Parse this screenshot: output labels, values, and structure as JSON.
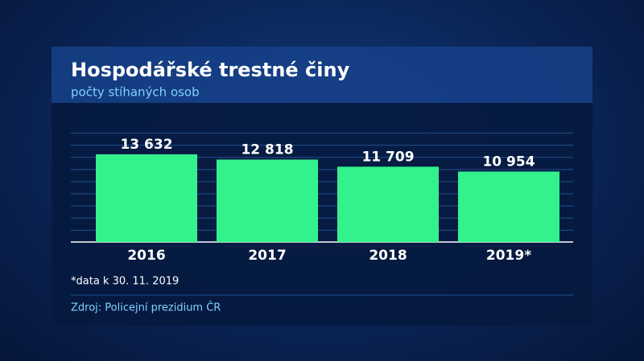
{
  "chart_data": {
    "type": "bar",
    "title": "Hospodářské trestné činy",
    "subtitle": "počty stíhaných osob",
    "categories": [
      "2016",
      "2017",
      "2018",
      "2019*"
    ],
    "values": [
      13632,
      12818,
      11709,
      10954
    ],
    "value_labels": [
      "13 632",
      "12 818",
      "11 709",
      "10 954"
    ],
    "color": "#33f28c",
    "ylim": [
      0,
      17000
    ],
    "footnote": "*data k 30. 11. 2019",
    "source": "Zdroj: Policejní prezidium ČR"
  }
}
